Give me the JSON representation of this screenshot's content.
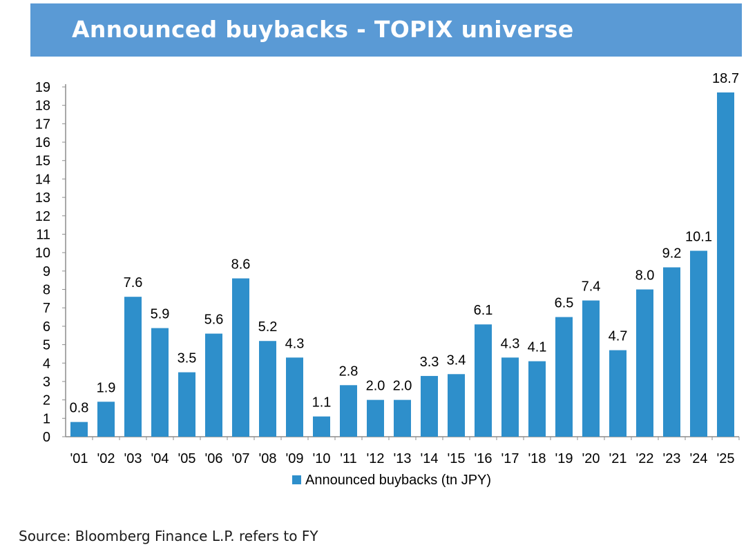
{
  "header": {
    "title": "Announced buybacks - TOPIX universe"
  },
  "chart_data": {
    "type": "bar",
    "title": "Announced buybacks - TOPIX universe",
    "categories": [
      "'01",
      "'02",
      "'03",
      "'04",
      "'05",
      "'06",
      "'07",
      "'08",
      "'09",
      "'10",
      "'11",
      "'12",
      "'13",
      "'14",
      "'15",
      "'16",
      "'17",
      "'18",
      "'19",
      "'20",
      "'21",
      "'22",
      "'23",
      "'24",
      "'25"
    ],
    "series": [
      {
        "name": "Announced buybacks (tn JPY)",
        "values": [
          0.8,
          1.9,
          7.6,
          5.9,
          3.5,
          5.6,
          8.6,
          5.2,
          4.3,
          1.1,
          2.8,
          2.0,
          2.0,
          3.3,
          3.4,
          6.1,
          4.3,
          4.1,
          6.5,
          7.4,
          4.7,
          8.0,
          9.2,
          10.1,
          18.7
        ],
        "color": "#2e8fcb"
      }
    ],
    "data_labels": [
      "0.8",
      "1.9",
      "7.6",
      "5.9",
      "3.5",
      "5.6",
      "8.6",
      "5.2",
      "4.3",
      "1.1",
      "2.8",
      "2.0",
      "2.0",
      "3.3",
      "3.4",
      "6.1",
      "4.3",
      "4.1",
      "6.5",
      "7.4",
      "4.7",
      "8.0",
      "9.2",
      "10.1",
      "18.7"
    ],
    "xlabel": "",
    "ylabel": "",
    "ylim": [
      0,
      19
    ],
    "yticks": [
      0,
      1,
      2,
      3,
      4,
      5,
      6,
      7,
      8,
      9,
      10,
      11,
      12,
      13,
      14,
      15,
      16,
      17,
      18,
      19
    ],
    "grid": false,
    "legend": {
      "position": "bottom-center",
      "label": "Announced buybacks (tn JPY)"
    }
  },
  "footer": {
    "source": "Source: Bloomberg Finance L.P. refers to FY"
  },
  "colors": {
    "banner": "#5a9ad5",
    "bar": "#2e8fcb",
    "axis": "#8c8c8c"
  }
}
